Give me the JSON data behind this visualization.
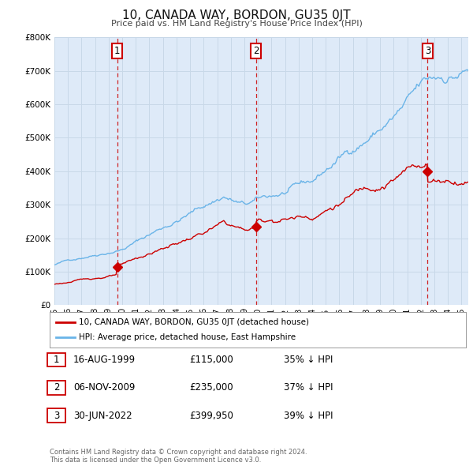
{
  "title": "10, CANADA WAY, BORDON, GU35 0JT",
  "subtitle": "Price paid vs. HM Land Registry's House Price Index (HPI)",
  "ylim": [
    0,
    800000
  ],
  "yticks": [
    0,
    100000,
    200000,
    300000,
    400000,
    500000,
    600000,
    700000,
    800000
  ],
  "sale_dates_num": [
    1999.62,
    2009.85,
    2022.5
  ],
  "sale_prices": [
    115000,
    235000,
    399950
  ],
  "sale_labels": [
    "1",
    "2",
    "3"
  ],
  "hpi_color": "#6ab4e8",
  "price_color": "#cc0000",
  "vline_color": "#cc0000",
  "plot_bg_color": "#deeaf8",
  "legend_line1": "10, CANADA WAY, BORDON, GU35 0JT (detached house)",
  "legend_line2": "HPI: Average price, detached house, East Hampshire",
  "table_rows": [
    [
      "1",
      "16-AUG-1999",
      "£115,000",
      "35% ↓ HPI"
    ],
    [
      "2",
      "06-NOV-2009",
      "£235,000",
      "37% ↓ HPI"
    ],
    [
      "3",
      "30-JUN-2022",
      "£399,950",
      "39% ↓ HPI"
    ]
  ],
  "footnote": "Contains HM Land Registry data © Crown copyright and database right 2024.\nThis data is licensed under the Open Government Licence v3.0.",
  "background_color": "#ffffff",
  "grid_color": "#c8d8e8"
}
